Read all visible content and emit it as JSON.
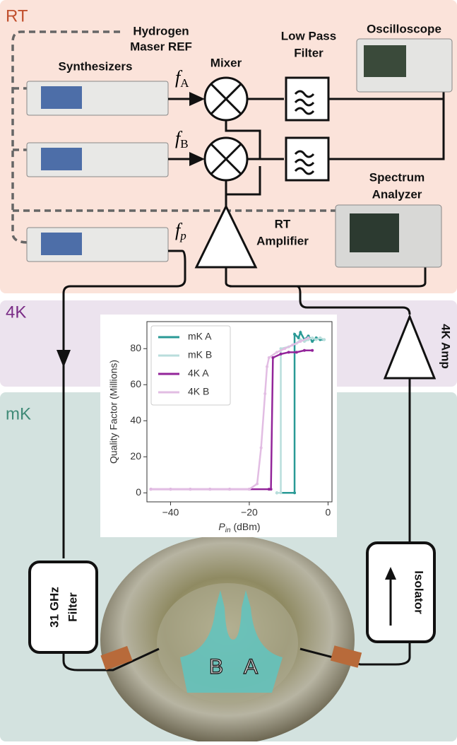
{
  "labels": {
    "rt": "RT",
    "fourk": "4K",
    "mk": "mK",
    "maser": [
      "Hydrogen",
      "Maser REF"
    ],
    "mixer": "Mixer",
    "lpf": [
      "Low Pass",
      "Filter"
    ],
    "oscilloscope": "Oscilloscope",
    "synthesizers": "Synthesizers",
    "freqs": [
      {
        "f": "f",
        "sub": "A"
      },
      {
        "f": "f",
        "sub": "B"
      },
      {
        "f": "f",
        "sub": "p"
      }
    ],
    "spectrum": [
      "Spectrum",
      "Analyzer"
    ],
    "rt_amp": [
      "RT",
      "Amplifier"
    ],
    "amp_4k": "4K Amp",
    "filter": [
      "31 GHz",
      "Filter"
    ],
    "isolator": "Isolator",
    "mode_b": "B",
    "mode_a": "A"
  },
  "chart_data": {
    "type": "line",
    "y_label": "Quality Factor (Millions)",
    "x_label": {
      "main": "P",
      "sub": "in",
      "unit": " (dBm)"
    },
    "xlim": [
      -46,
      1
    ],
    "xticks": [
      {
        "value": -40,
        "label": "−40"
      },
      {
        "value": -20,
        "label": "−20"
      },
      0
    ],
    "ylim": [
      -5,
      95
    ],
    "yticks": [
      0,
      20,
      40,
      60,
      80
    ],
    "legend": "upper left",
    "series": [
      {
        "name": "mK A",
        "color": "#2a9a96",
        "x": [
          -13,
          -8.5,
          -8.5,
          -7.5,
          -7,
          -6,
          -5,
          -4,
          -3,
          -2,
          -1
        ],
        "values": [
          0,
          0,
          88,
          86,
          89,
          85,
          87,
          84,
          86,
          85,
          85
        ]
      },
      {
        "name": "mK B",
        "color": "#b9dedc",
        "x": [
          -13,
          -12,
          -12,
          -10,
          -9,
          -8,
          -7,
          -6,
          -5,
          -4,
          -3,
          -2,
          -1
        ],
        "values": [
          0,
          0,
          80,
          81,
          82,
          83,
          85,
          84,
          85,
          86,
          85,
          86,
          85
        ]
      },
      {
        "name": "4K A",
        "color": "#93259a",
        "x": [
          -45,
          -40,
          -35,
          -30,
          -25,
          -20,
          -15,
          -14.5,
          -14,
          -12,
          -10,
          -8,
          -6,
          -4
        ],
        "values": [
          2,
          2,
          2,
          2,
          2,
          2,
          2,
          2,
          75,
          77,
          78,
          78,
          79,
          79
        ]
      },
      {
        "name": "4K B",
        "color": "#e2bde3",
        "x": [
          -45,
          -40,
          -35,
          -30,
          -25,
          -20,
          -18,
          -17,
          -16,
          -15.5,
          -15,
          -13,
          -11,
          -9,
          -7,
          -5
        ],
        "values": [
          2,
          2,
          2,
          2,
          2,
          2,
          5,
          25,
          55,
          70,
          75,
          78,
          80,
          82,
          84,
          86
        ]
      }
    ]
  }
}
